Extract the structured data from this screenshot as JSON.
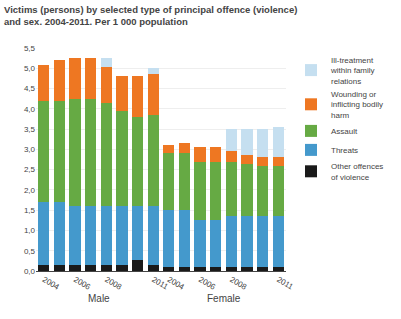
{
  "chart_data": {
    "type": "bar",
    "stacked": true,
    "title": "Victims (persons) by selected type of principal offence (violence)\nand sex. 2004-2011. Per 1 000 population",
    "categories": [
      "2004",
      null,
      "2006",
      null,
      "2008",
      null,
      null,
      "2011",
      "2004",
      null,
      "2006",
      null,
      "2008",
      null,
      null,
      "2011"
    ],
    "series": [
      {
        "name": "Other offences\nof violence",
        "color": "#1a1a1a",
        "values": [
          0.15,
          0.15,
          0.15,
          0.15,
          0.15,
          0.15,
          0.28,
          0.15,
          0.1,
          0.1,
          0.1,
          0.1,
          0.1,
          0.1,
          0.1,
          0.1
        ]
      },
      {
        "name": "Threats",
        "color": "#4499cc",
        "values": [
          1.55,
          1.55,
          1.45,
          1.45,
          1.45,
          1.45,
          1.32,
          1.45,
          1.4,
          1.4,
          1.15,
          1.15,
          1.25,
          1.25,
          1.25,
          1.25
        ]
      },
      {
        "name": "Assault",
        "color": "#66aa44",
        "values": [
          2.5,
          2.5,
          2.65,
          2.65,
          2.55,
          2.35,
          2.2,
          2.25,
          1.4,
          1.4,
          1.45,
          1.45,
          1.35,
          1.3,
          1.25,
          1.25
        ]
      },
      {
        "name": "Wounding or\ninflicting bodily\nharm",
        "color": "#ee7722",
        "values": [
          0.88,
          1.0,
          1.0,
          1.0,
          0.88,
          0.85,
          1.0,
          1.0,
          0.2,
          0.25,
          0.35,
          0.35,
          0.25,
          0.2,
          0.2,
          0.2
        ]
      },
      {
        "name": "Ill-treatment\nwithin family\nrelations",
        "color": "#c5dff0",
        "values": [
          0.0,
          0.0,
          0.0,
          0.0,
          0.22,
          0.0,
          0.0,
          0.15,
          0.0,
          0.0,
          0.0,
          0.0,
          0.55,
          0.65,
          0.7,
          0.75
        ]
      }
    ],
    "annotations": [
      {
        "text": "Male"
      },
      {
        "text": "Female"
      }
    ],
    "ylim": [
      0,
      5.5
    ],
    "yticks": [
      {
        "value": 0.0,
        "label": "0,0"
      },
      {
        "value": 0.5,
        "label": "0,5"
      },
      {
        "value": 1.0,
        "label": "1,0"
      },
      {
        "value": 1.5,
        "label": "1,5"
      },
      {
        "value": 2.0,
        "label": "2,0"
      },
      {
        "value": 2.5,
        "label": "2,5"
      },
      {
        "value": 3.0,
        "label": "3,0"
      },
      {
        "value": 3.5,
        "label": "3,5"
      },
      {
        "value": 4.0,
        "label": "4,0"
      },
      {
        "value": 4.5,
        "label": "4,5"
      },
      {
        "value": 5.0,
        "label": "5,0"
      },
      {
        "value": 5.5,
        "label": "5,5"
      }
    ],
    "grid": true,
    "legend": "upper right"
  }
}
